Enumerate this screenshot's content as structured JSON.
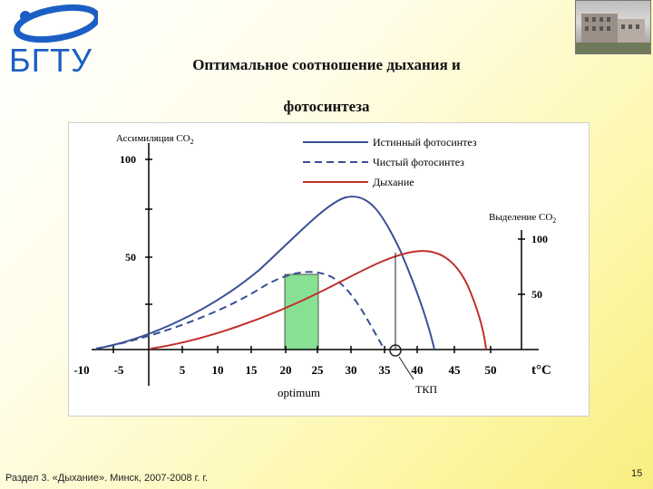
{
  "header": {
    "logo_text": "БГТУ",
    "title_line1": "Оптимальное соотношение дыхания и",
    "title_line2": "фотосинтеза"
  },
  "diagram": {
    "left_axis_label": "Ассимиляция CO",
    "left_axis_sub": "2",
    "right_axis_label": "Выделение CO",
    "right_axis_sub": "2",
    "left_ticks": [
      "100",
      "50"
    ],
    "right_ticks": [
      "100",
      "50"
    ],
    "x_ticks": [
      "-10",
      "-5",
      "5",
      "10",
      "15",
      "20",
      "25",
      "30",
      "35",
      "40",
      "45",
      "50"
    ],
    "x_unit": "t°C",
    "legend": [
      {
        "label": "Истинный фотосинтез",
        "color": "#3a4f95",
        "style": "solid"
      },
      {
        "label": "Чистый фотосинтез",
        "color": "#3a4f95",
        "style": "dashed"
      },
      {
        "label": "Дыхание",
        "color": "#c0302a",
        "style": "solid"
      }
    ],
    "optimum_label": "optimum",
    "optimum_fill": "#88e094",
    "tkp_label": "ТКП"
  },
  "footer": {
    "text": "Раздел 3. «Дыхание». Минск, 2007-2008 г. г.",
    "page": "15"
  }
}
